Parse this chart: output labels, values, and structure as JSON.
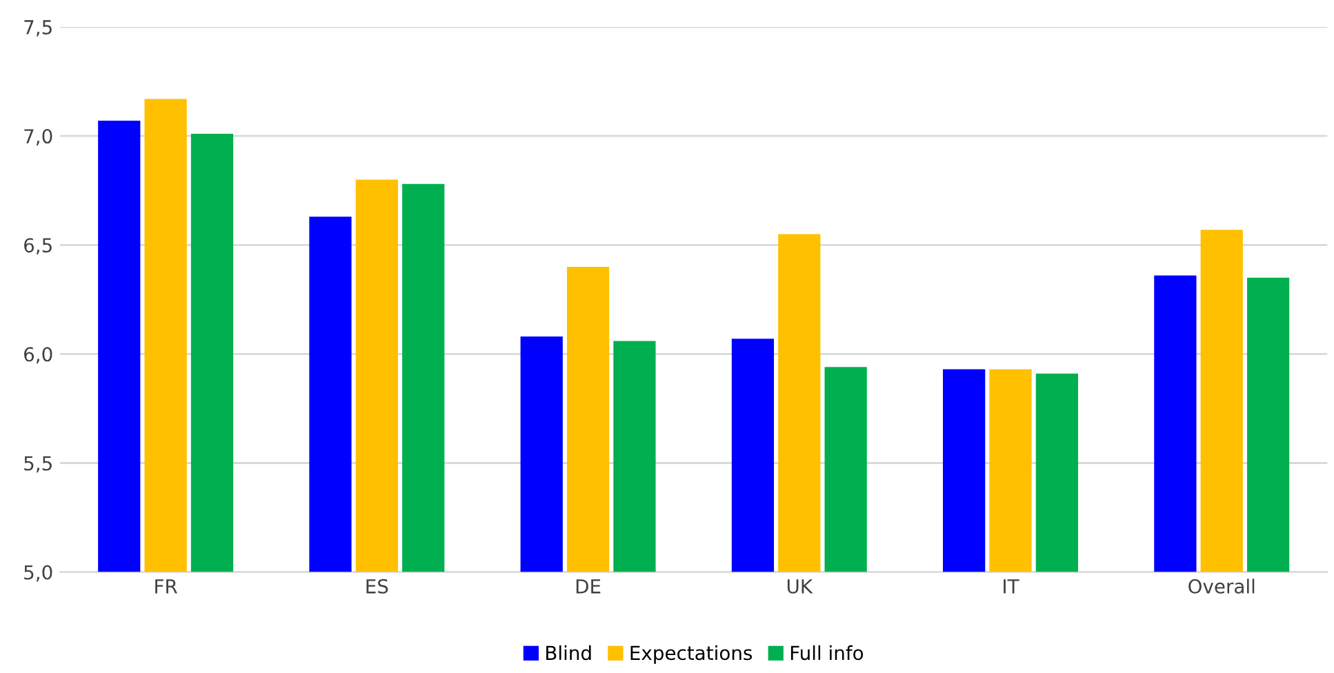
{
  "chart_data": {
    "type": "bar",
    "categories": [
      "FR",
      "ES",
      "DE",
      "UK",
      "IT",
      "Overall"
    ],
    "series": [
      {
        "name": "Blind",
        "color": "#0000ff",
        "values": [
          7.07,
          6.63,
          6.08,
          6.07,
          5.93,
          6.36
        ]
      },
      {
        "name": "Expectations",
        "color": "#ffc000",
        "values": [
          7.17,
          6.8,
          6.4,
          6.55,
          5.93,
          6.57
        ]
      },
      {
        "name": "Full info",
        "color": "#00b050",
        "values": [
          7.01,
          6.78,
          6.06,
          5.94,
          5.91,
          6.35
        ]
      }
    ],
    "ylim": [
      5.0,
      7.5
    ],
    "yticks": [
      {
        "value": 5.0,
        "label": "5,0"
      },
      {
        "value": 5.5,
        "label": "5,5"
      },
      {
        "value": 6.0,
        "label": "6,0"
      },
      {
        "value": 6.5,
        "label": "6,5"
      },
      {
        "value": 7.0,
        "label": "7,0"
      },
      {
        "value": 7.5,
        "label": "7,5"
      }
    ],
    "grid": "y",
    "legend": "bottom"
  }
}
